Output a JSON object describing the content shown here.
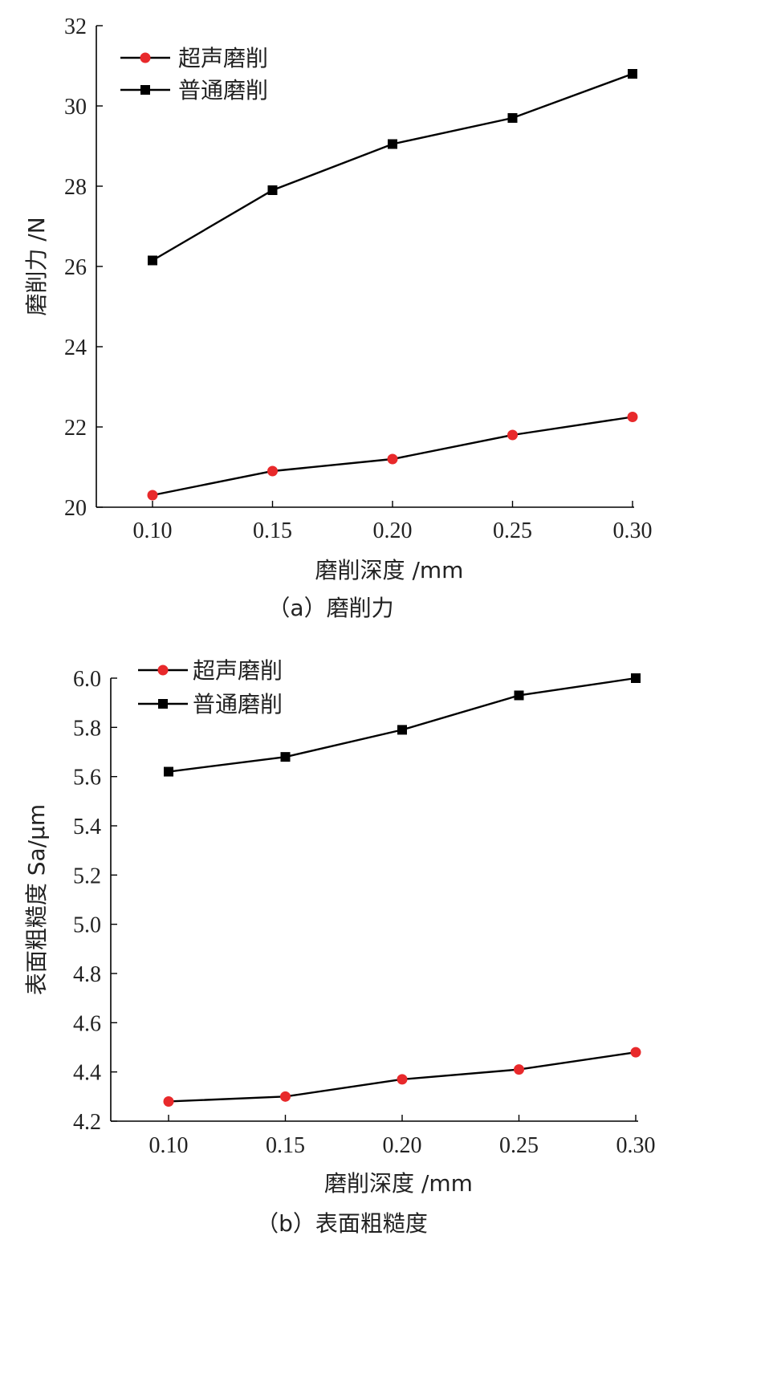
{
  "chart_data": [
    {
      "type": "line",
      "caption": "（a）磨削力",
      "xlabel": "磨削深度 /mm",
      "ylabel": "磨削力 /N",
      "x": [
        0.1,
        0.15,
        0.2,
        0.25,
        0.3
      ],
      "x_tick_labels": [
        "0.10",
        "0.15",
        "0.20",
        "0.25",
        "0.30"
      ],
      "y_ticks": [
        20,
        22,
        24,
        26,
        28,
        30,
        32
      ],
      "y_tick_labels": [
        "20",
        "22",
        "24",
        "26",
        "28",
        "30",
        "32"
      ],
      "ylim": [
        20,
        32
      ],
      "grid": false,
      "legend_position": "top-left",
      "series": [
        {
          "name": "超声磨削",
          "marker": "circle",
          "color": "#e8292b",
          "values": [
            20.3,
            20.9,
            21.2,
            21.8,
            22.25
          ]
        },
        {
          "name": "普通磨削",
          "marker": "square",
          "color": "#000000",
          "values": [
            26.15,
            27.9,
            29.05,
            29.7,
            30.8
          ]
        }
      ]
    },
    {
      "type": "line",
      "caption": "（b）表面粗糙度",
      "xlabel": "磨削深度 /mm",
      "ylabel": "表面粗糙度 Sa/μm",
      "x": [
        0.1,
        0.15,
        0.2,
        0.25,
        0.3
      ],
      "x_tick_labels": [
        "0.10",
        "0.15",
        "0.20",
        "0.25",
        "0.30"
      ],
      "y_ticks": [
        4.2,
        4.4,
        4.6,
        4.8,
        5.0,
        5.2,
        5.4,
        5.6,
        5.8,
        6.0
      ],
      "y_tick_labels": [
        "4.2",
        "4.4",
        "4.6",
        "4.8",
        "5.0",
        "5.2",
        "5.4",
        "5.6",
        "5.8",
        "6.0"
      ],
      "ylim": [
        4.2,
        6.0
      ],
      "grid": false,
      "legend_position": "top-left",
      "series": [
        {
          "name": "超声磨削",
          "marker": "circle",
          "color": "#e8292b",
          "values": [
            4.28,
            4.3,
            4.37,
            4.41,
            4.48
          ]
        },
        {
          "name": "普通磨削",
          "marker": "square",
          "color": "#000000",
          "values": [
            5.62,
            5.68,
            5.79,
            5.93,
            6.0
          ]
        }
      ]
    }
  ]
}
